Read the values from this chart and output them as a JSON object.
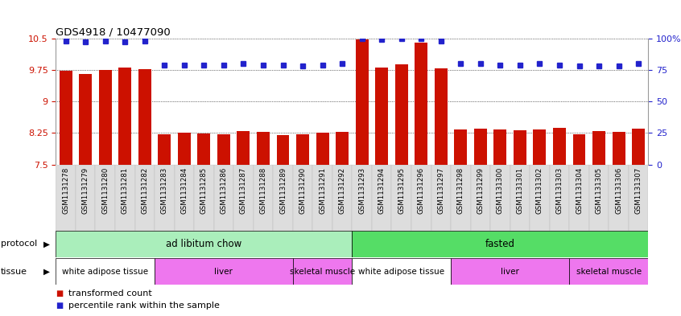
{
  "title": "GDS4918 / 10477090",
  "samples": [
    "GSM1131278",
    "GSM1131279",
    "GSM1131280",
    "GSM1131281",
    "GSM1131282",
    "GSM1131283",
    "GSM1131284",
    "GSM1131285",
    "GSM1131286",
    "GSM1131287",
    "GSM1131288",
    "GSM1131289",
    "GSM1131290",
    "GSM1131291",
    "GSM1131292",
    "GSM1131293",
    "GSM1131294",
    "GSM1131295",
    "GSM1131296",
    "GSM1131297",
    "GSM1131298",
    "GSM1131299",
    "GSM1131300",
    "GSM1131301",
    "GSM1131302",
    "GSM1131303",
    "GSM1131304",
    "GSM1131305",
    "GSM1131306",
    "GSM1131307"
  ],
  "bar_values": [
    9.72,
    9.65,
    9.75,
    9.8,
    9.76,
    8.22,
    8.26,
    8.24,
    8.22,
    8.3,
    8.27,
    8.2,
    8.22,
    8.26,
    8.28,
    10.48,
    9.8,
    9.88,
    10.4,
    9.78,
    8.33,
    8.36,
    8.34,
    8.32,
    8.33,
    8.38,
    8.22,
    8.3,
    8.27,
    8.35
  ],
  "dot_values": [
    98,
    97,
    98,
    97,
    98,
    79,
    79,
    79,
    79,
    80,
    79,
    79,
    78,
    79,
    80,
    100,
    99,
    100,
    100,
    98,
    80,
    80,
    79,
    79,
    80,
    79,
    78,
    78,
    78,
    80
  ],
  "ylim_left": [
    7.5,
    10.5
  ],
  "ylim_right": [
    0,
    100
  ],
  "yticks_left": [
    7.5,
    8.25,
    9.0,
    9.75,
    10.5
  ],
  "ytick_labels_left": [
    "7.5",
    "8.25",
    "9",
    "9.75",
    "10.5"
  ],
  "yticks_right": [
    0,
    25,
    50,
    75,
    100
  ],
  "ytick_labels_right": [
    "0",
    "25",
    "50",
    "75",
    "100%"
  ],
  "bar_color": "#CC1100",
  "dot_color": "#2222CC",
  "bar_width": 0.65,
  "protocol_groups": [
    {
      "label": "ad libitum chow",
      "start": 0,
      "end": 14,
      "color": "#AAEEBB"
    },
    {
      "label": "fasted",
      "start": 15,
      "end": 29,
      "color": "#55DD66"
    }
  ],
  "tissue_groups": [
    {
      "label": "white adipose tissue",
      "start": 0,
      "end": 4,
      "color": "#FFFFFF"
    },
    {
      "label": "liver",
      "start": 5,
      "end": 11,
      "color": "#EE77EE"
    },
    {
      "label": "skeletal muscle",
      "start": 12,
      "end": 14,
      "color": "#EE77EE"
    },
    {
      "label": "white adipose tissue",
      "start": 15,
      "end": 19,
      "color": "#FFFFFF"
    },
    {
      "label": "liver",
      "start": 20,
      "end": 25,
      "color": "#EE77EE"
    },
    {
      "label": "skeletal muscle",
      "start": 26,
      "end": 29,
      "color": "#EE77EE"
    }
  ],
  "legend_bar_label": "transformed count",
  "legend_dot_label": "percentile rank within the sample",
  "bar_color_label": "#CC1100",
  "dot_color_label": "#2222CC"
}
